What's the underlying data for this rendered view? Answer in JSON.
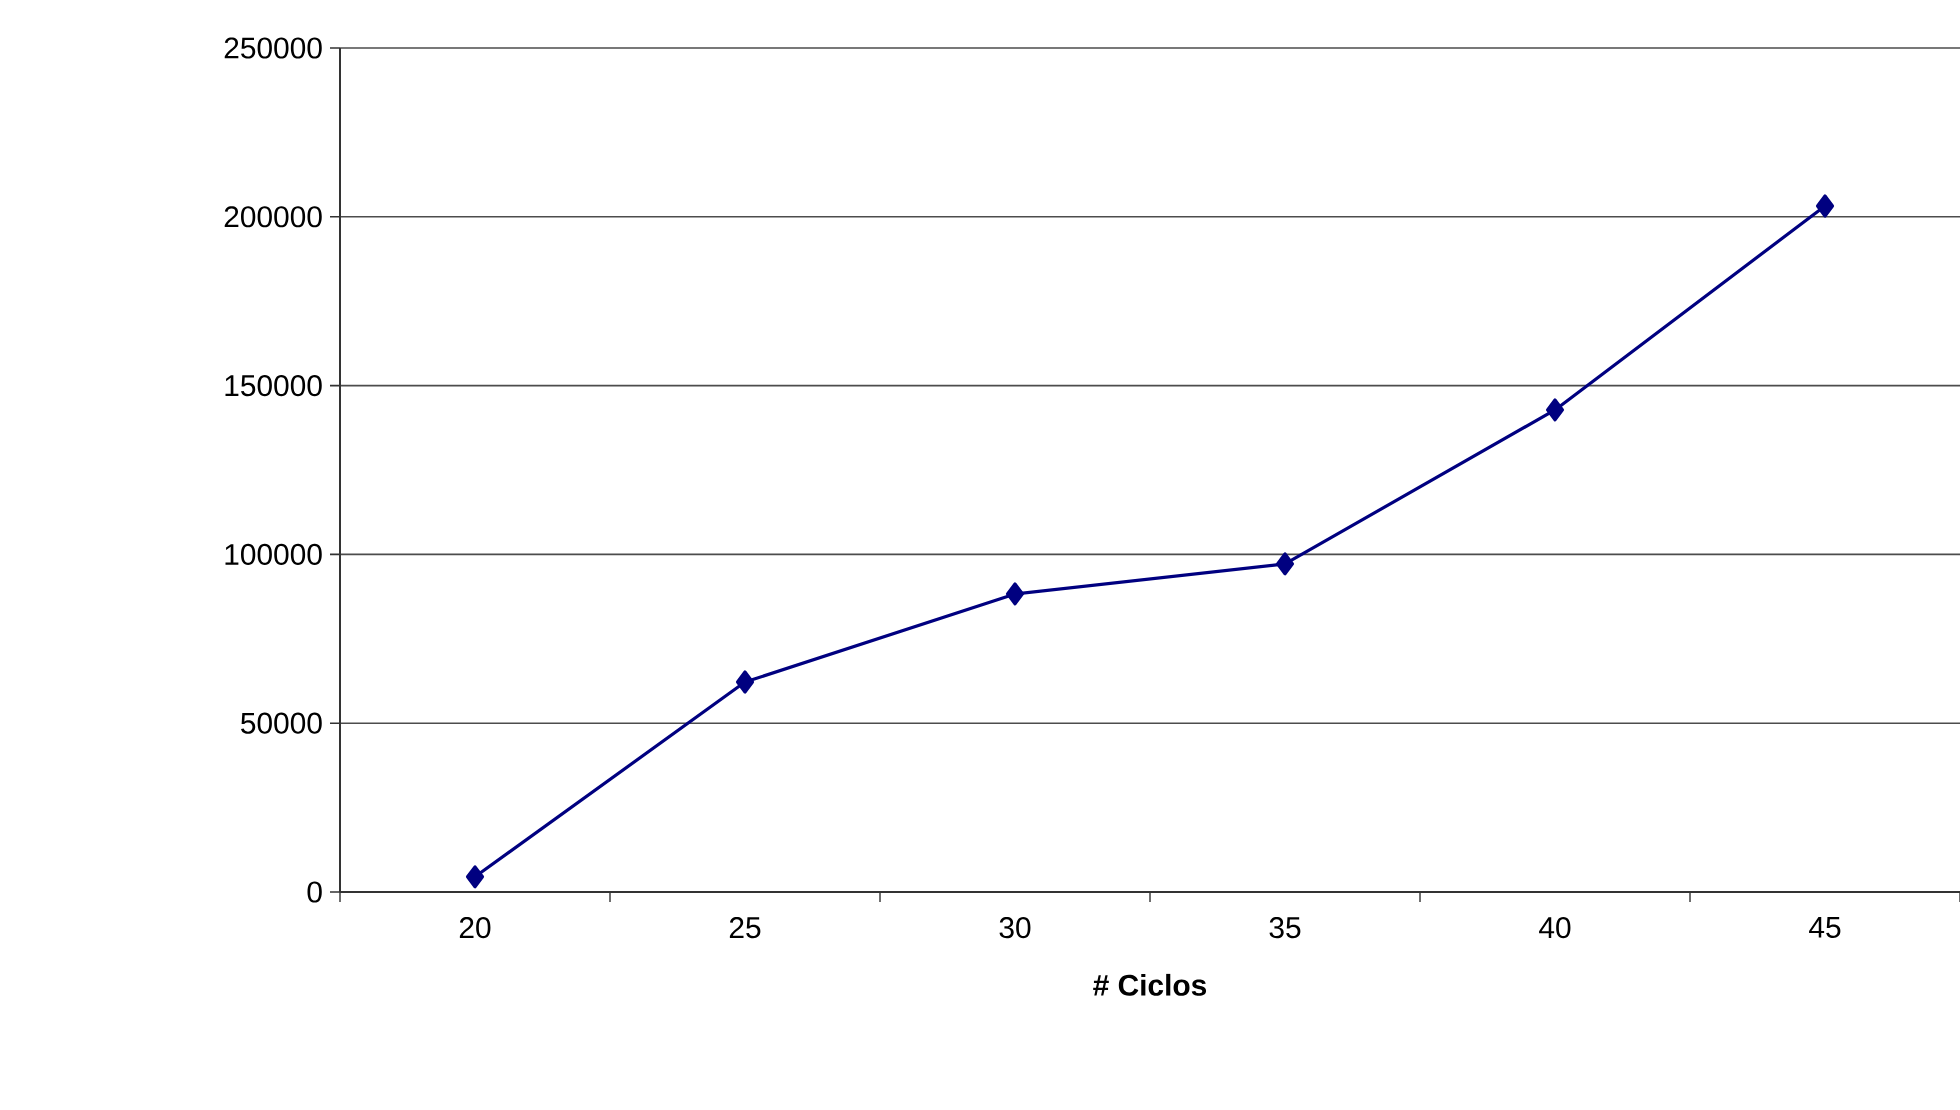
{
  "chart_data": {
    "type": "line",
    "xlabel": "# Ciclos",
    "categories": [
      "20",
      "25",
      "30",
      "35",
      "40",
      "45"
    ],
    "series": [
      {
        "color": "#000080",
        "values": [
          4500,
          62200,
          88300,
          97200,
          142800,
          203200
        ]
      }
    ],
    "ylim": [
      0,
      250000
    ],
    "yticks": [
      0,
      50000,
      100000,
      150000,
      200000,
      250000
    ],
    "grid": "y",
    "marker": "diamond",
    "line_style": "solid"
  }
}
